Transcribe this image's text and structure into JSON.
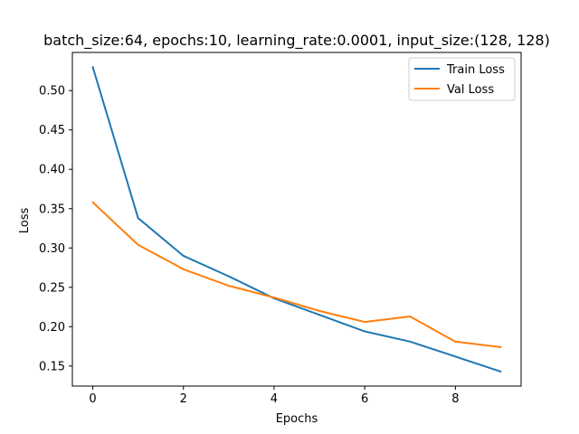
{
  "chart_data": {
    "type": "line",
    "title": "batch_size:64, epochs:10, learning_rate:0.0001, input_size:(128, 128)",
    "xlabel": "Epochs",
    "ylabel": "Loss",
    "x": [
      0,
      1,
      2,
      3,
      4,
      5,
      6,
      7,
      8,
      9
    ],
    "xlim": [
      -0.45,
      9.45
    ],
    "ylim": [
      0.1245,
      0.5485
    ],
    "xticks": [
      0,
      2,
      4,
      6,
      8
    ],
    "xtick_labels": [
      "0",
      "2",
      "4",
      "6",
      "8"
    ],
    "yticks": [
      0.15,
      0.2,
      0.25,
      0.3,
      0.35,
      0.4,
      0.45,
      0.5
    ],
    "ytick_labels": [
      "0.15",
      "0.20",
      "0.25",
      "0.30",
      "0.35",
      "0.40",
      "0.45",
      "0.50"
    ],
    "grid": false,
    "legend_position": "top-right",
    "series": [
      {
        "name": "Train Loss",
        "color": "#1f77b4",
        "values": [
          0.53,
          0.338,
          0.29,
          0.264,
          0.236,
          0.215,
          0.194,
          0.181,
          0.162,
          0.143
        ]
      },
      {
        "name": "Val Loss",
        "color": "#ff7f0e",
        "values": [
          0.358,
          0.304,
          0.273,
          0.252,
          0.237,
          0.22,
          0.206,
          0.213,
          0.181,
          0.174
        ]
      }
    ]
  }
}
